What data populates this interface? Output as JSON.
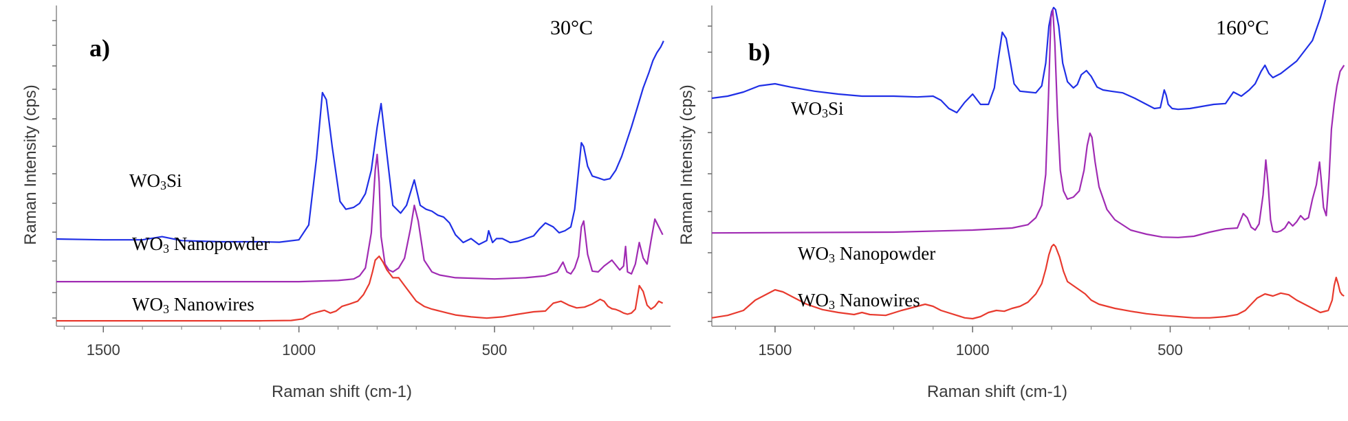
{
  "chart_data": [
    {
      "type": "line",
      "panel_label": "a)",
      "annotation": "30°C",
      "xlabel": "Raman shift (cm-1)",
      "ylabel": "Raman Intensity (cps)",
      "xlim": [
        1620,
        50
      ],
      "x_reversed": true,
      "xticks": [
        1500,
        1000,
        500
      ],
      "grid": false,
      "series": [
        {
          "label_base": "WO",
          "label_sub": "3",
          "label_rest": "Si",
          "color": "#1f2fe6",
          "x": [
            1620,
            1500,
            1400,
            1350,
            1300,
            1200,
            1100,
            1050,
            1000,
            975,
            955,
            940,
            930,
            915,
            895,
            880,
            860,
            845,
            830,
            815,
            800,
            790,
            775,
            760,
            740,
            725,
            705,
            690,
            675,
            660,
            645,
            630,
            615,
            600,
            580,
            560,
            540,
            520,
            515,
            505,
            495,
            480,
            460,
            440,
            420,
            400,
            385,
            370,
            350,
            335,
            320,
            305,
            295,
            285,
            278,
            272,
            262,
            250,
            235,
            220,
            205,
            190,
            175,
            165,
            150,
            135,
            120,
            105,
            95,
            85,
            75,
            70,
            68
          ],
          "y": [
            2.14,
            2.12,
            2.12,
            2.2,
            2.1,
            2.07,
            2.07,
            2.06,
            2.12,
            2.5,
            4.2,
            5.88,
            5.7,
            4.5,
            3.1,
            2.9,
            2.95,
            3.05,
            3.3,
            3.9,
            5.0,
            5.6,
            4.3,
            3.0,
            2.8,
            3.0,
            3.65,
            3.0,
            2.9,
            2.85,
            2.75,
            2.7,
            2.55,
            2.25,
            2.05,
            2.15,
            2.0,
            2.1,
            2.35,
            2.05,
            2.15,
            2.15,
            2.05,
            2.08,
            2.15,
            2.22,
            2.4,
            2.55,
            2.45,
            2.3,
            2.35,
            2.45,
            2.9,
            3.9,
            4.6,
            4.5,
            4.0,
            3.75,
            3.7,
            3.65,
            3.68,
            3.9,
            4.25,
            4.55,
            5.0,
            5.5,
            6.0,
            6.4,
            6.7,
            6.9,
            7.05,
            7.15,
            7.2
          ]
        },
        {
          "label_base": "WO",
          "label_sub": "3",
          "label_rest": " Nanopowder",
          "color": "#a02bb3",
          "x": [
            1620,
            1200,
            1000,
            900,
            860,
            845,
            830,
            815,
            805,
            800,
            795,
            790,
            780,
            770,
            760,
            745,
            730,
            715,
            705,
            695,
            680,
            660,
            640,
            600,
            500,
            420,
            370,
            340,
            325,
            315,
            305,
            295,
            285,
            278,
            272,
            262,
            250,
            235,
            220,
            200,
            180,
            170,
            165,
            160,
            150,
            140,
            130,
            120,
            110,
            100,
            90,
            80,
            70
          ],
          "y": [
            1.05,
            1.05,
            1.05,
            1.08,
            1.12,
            1.2,
            1.4,
            2.3,
            3.9,
            4.3,
            3.6,
            2.2,
            1.5,
            1.35,
            1.3,
            1.4,
            1.65,
            2.4,
            3.0,
            2.6,
            1.6,
            1.3,
            1.22,
            1.15,
            1.12,
            1.15,
            1.2,
            1.3,
            1.55,
            1.3,
            1.25,
            1.4,
            1.7,
            2.45,
            2.6,
            1.75,
            1.32,
            1.3,
            1.45,
            1.6,
            1.35,
            1.45,
            1.95,
            1.3,
            1.25,
            1.5,
            2.05,
            1.65,
            1.5,
            2.1,
            2.65,
            2.45,
            2.25
          ]
        },
        {
          "label_base": "WO",
          "label_sub": "3",
          "label_rest": " Nanowires",
          "color": "#e83a2e",
          "x": [
            1620,
            1100,
            1020,
            990,
            970,
            950,
            935,
            920,
            905,
            890,
            870,
            850,
            835,
            820,
            812,
            805,
            795,
            785,
            775,
            760,
            745,
            730,
            715,
            700,
            680,
            660,
            640,
            620,
            600,
            560,
            520,
            480,
            440,
            400,
            370,
            350,
            330,
            310,
            290,
            270,
            250,
            230,
            220,
            210,
            200,
            190,
            180,
            170,
            160,
            150,
            140,
            130,
            120,
            110,
            100,
            90,
            80,
            70
          ],
          "y": [
            0.05,
            0.05,
            0.06,
            0.1,
            0.22,
            0.28,
            0.32,
            0.25,
            0.3,
            0.42,
            0.48,
            0.55,
            0.72,
            1.0,
            1.3,
            1.6,
            1.7,
            1.55,
            1.35,
            1.15,
            1.15,
            0.95,
            0.75,
            0.55,
            0.42,
            0.35,
            0.3,
            0.25,
            0.2,
            0.15,
            0.12,
            0.15,
            0.22,
            0.28,
            0.3,
            0.5,
            0.55,
            0.45,
            0.38,
            0.4,
            0.48,
            0.6,
            0.55,
            0.42,
            0.36,
            0.34,
            0.3,
            0.25,
            0.22,
            0.25,
            0.35,
            0.95,
            0.8,
            0.45,
            0.35,
            0.42,
            0.55,
            0.5
          ]
        }
      ]
    },
    {
      "type": "line",
      "panel_label": "b)",
      "annotation": "160°C",
      "xlabel": "Raman shift (cm-1)",
      "ylabel": "Raman Intensity (cps)",
      "xlim": [
        1660,
        50
      ],
      "x_reversed": true,
      "xticks": [
        1500,
        1000,
        500
      ],
      "grid": false,
      "series": [
        {
          "label_base": "WO",
          "label_sub": "3",
          "label_rest": "Si",
          "color": "#1f2fe6",
          "x": [
            1660,
            1620,
            1580,
            1540,
            1500,
            1460,
            1400,
            1340,
            1280,
            1200,
            1140,
            1100,
            1080,
            1060,
            1040,
            1020,
            1000,
            980,
            960,
            945,
            935,
            925,
            915,
            905,
            895,
            880,
            860,
            840,
            825,
            815,
            807,
            800,
            795,
            790,
            782,
            772,
            760,
            745,
            735,
            725,
            712,
            700,
            685,
            670,
            650,
            620,
            590,
            560,
            540,
            525,
            515,
            510,
            505,
            495,
            480,
            450,
            420,
            390,
            360,
            340,
            320,
            300,
            285,
            270,
            260,
            250,
            240,
            220,
            200,
            180,
            160,
            140,
            120,
            105,
            90,
            80,
            70,
            60
          ],
          "y": [
            5.45,
            5.5,
            5.6,
            5.75,
            5.8,
            5.72,
            5.62,
            5.55,
            5.5,
            5.5,
            5.48,
            5.5,
            5.4,
            5.2,
            5.1,
            5.35,
            5.55,
            5.3,
            5.3,
            5.7,
            6.4,
            7.05,
            6.9,
            6.35,
            5.8,
            5.62,
            5.6,
            5.58,
            5.75,
            6.3,
            7.2,
            7.55,
            7.65,
            7.6,
            7.2,
            6.3,
            5.85,
            5.7,
            5.78,
            6.02,
            6.12,
            5.98,
            5.72,
            5.65,
            5.62,
            5.58,
            5.45,
            5.3,
            5.2,
            5.22,
            5.65,
            5.52,
            5.3,
            5.2,
            5.18,
            5.2,
            5.25,
            5.3,
            5.32,
            5.6,
            5.5,
            5.65,
            5.8,
            6.1,
            6.25,
            6.05,
            5.95,
            6.05,
            6.2,
            6.35,
            6.6,
            6.85,
            7.4,
            7.9,
            8.2,
            8.15,
            8.4,
            8.6
          ]
        },
        {
          "label_base": "WO",
          "label_sub": "3",
          "label_rest": " Nanopowder",
          "color": "#a02bb3",
          "x": [
            1660,
            1200,
            1000,
            900,
            860,
            840,
            825,
            815,
            808,
            802,
            797,
            792,
            785,
            778,
            770,
            760,
            745,
            730,
            718,
            710,
            703,
            698,
            690,
            680,
            660,
            640,
            600,
            560,
            520,
            480,
            440,
            400,
            360,
            330,
            315,
            305,
            295,
            285,
            275,
            265,
            258,
            252,
            246,
            240,
            230,
            220,
            210,
            200,
            190,
            180,
            170,
            160,
            150,
            140,
            130,
            122,
            118,
            112,
            105,
            98,
            92,
            85,
            78,
            70,
            60
          ],
          "y": [
            2.18,
            2.2,
            2.25,
            2.3,
            2.38,
            2.55,
            2.85,
            3.6,
            5.5,
            7.4,
            7.6,
            6.8,
            5.0,
            3.7,
            3.2,
            3.0,
            3.05,
            3.2,
            3.7,
            4.3,
            4.6,
            4.5,
            3.9,
            3.3,
            2.75,
            2.5,
            2.25,
            2.15,
            2.08,
            2.07,
            2.1,
            2.2,
            2.28,
            2.3,
            2.65,
            2.55,
            2.32,
            2.25,
            2.4,
            3.1,
            3.95,
            3.35,
            2.5,
            2.22,
            2.2,
            2.23,
            2.3,
            2.45,
            2.35,
            2.45,
            2.6,
            2.5,
            2.55,
            3.0,
            3.35,
            3.9,
            3.5,
            2.8,
            2.6,
            3.5,
            4.7,
            5.3,
            5.75,
            6.1,
            6.25
          ]
        },
        {
          "label_base": "WO",
          "label_sub": "3",
          "label_rest": " Nanowires",
          "color": "#e83a2e",
          "x": [
            1660,
            1620,
            1580,
            1550,
            1520,
            1500,
            1480,
            1450,
            1420,
            1380,
            1340,
            1300,
            1280,
            1260,
            1220,
            1180,
            1140,
            1120,
            1100,
            1080,
            1040,
            1020,
            1000,
            980,
            960,
            940,
            920,
            900,
            880,
            860,
            840,
            825,
            815,
            807,
            800,
            795,
            790,
            780,
            770,
            760,
            745,
            730,
            715,
            700,
            680,
            660,
            640,
            600,
            560,
            520,
            480,
            440,
            400,
            360,
            330,
            310,
            300,
            280,
            260,
            240,
            220,
            200,
            180,
            160,
            140,
            120,
            100,
            90,
            85,
            80,
            75,
            70,
            65,
            60
          ],
          "y": [
            0.12,
            0.18,
            0.3,
            0.55,
            0.7,
            0.8,
            0.75,
            0.6,
            0.45,
            0.32,
            0.25,
            0.2,
            0.25,
            0.2,
            0.18,
            0.3,
            0.4,
            0.45,
            0.4,
            0.3,
            0.18,
            0.12,
            0.1,
            0.15,
            0.25,
            0.3,
            0.28,
            0.35,
            0.4,
            0.5,
            0.7,
            0.95,
            1.3,
            1.65,
            1.85,
            1.9,
            1.85,
            1.6,
            1.25,
            1.0,
            0.9,
            0.8,
            0.7,
            0.55,
            0.45,
            0.4,
            0.35,
            0.28,
            0.22,
            0.18,
            0.15,
            0.12,
            0.12,
            0.15,
            0.2,
            0.3,
            0.4,
            0.6,
            0.7,
            0.65,
            0.72,
            0.68,
            0.55,
            0.45,
            0.35,
            0.25,
            0.3,
            0.55,
            0.9,
            1.1,
            0.95,
            0.75,
            0.68,
            0.65
          ]
        }
      ]
    }
  ]
}
